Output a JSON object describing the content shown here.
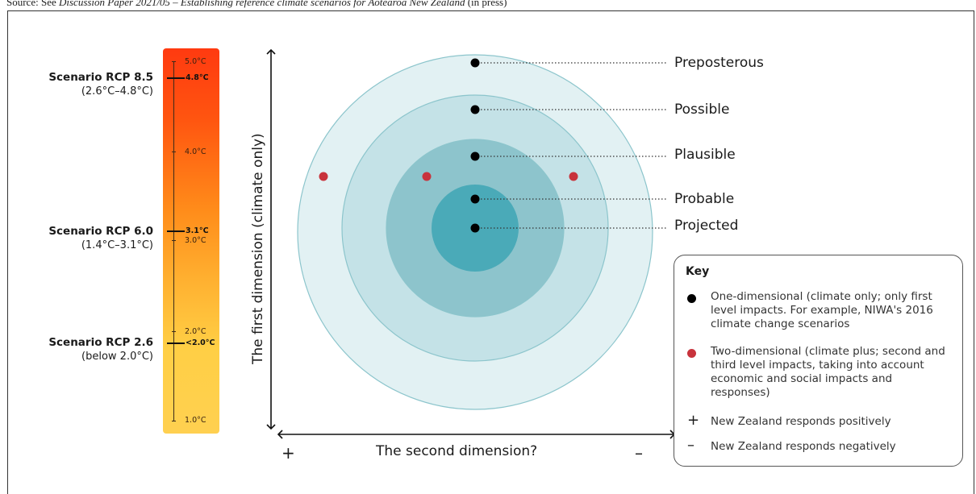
{
  "source": {
    "prefix": "Source: See ",
    "title": "Discussion Paper 2021/05 – Establishing reference climate scenarios for Aotearoa New Zealand",
    "suffix": " (in press)"
  },
  "temperature_bar": {
    "ticks": [
      "5.0°C",
      "4.0°C",
      "3.0°C",
      "2.0°C",
      "1.0°C"
    ],
    "marks": [
      "4.8°C",
      "3.1°C",
      "<2.0°C"
    ]
  },
  "scenarios": [
    {
      "name": "Scenario RCP 8.5",
      "range": "(2.6°C–4.8°C)"
    },
    {
      "name": "Scenario RCP 6.0",
      "range": "(1.4°C–3.1°C)"
    },
    {
      "name": "Scenario RCP 2.6",
      "range": "(below 2.0°C)"
    }
  ],
  "axes": {
    "y_label": "The first dimension (climate only)",
    "x_label": "The second dimension?",
    "x_left_sign": "+",
    "x_right_sign": "–"
  },
  "circles": [
    "Preposterous",
    "Possible",
    "Plausible",
    "Probable",
    "Projected"
  ],
  "colors": {
    "ring1": "#e2f1f3",
    "ring2": "#c4e2e7",
    "ring3": "#8dc4cc",
    "core": "#4aaab8",
    "ring_stroke": "#8cc5cc",
    "red_dot": "#c8333c",
    "black_dot": "#000000"
  },
  "key": {
    "title": "Key",
    "items": [
      {
        "marker": "black-dot",
        "text": "One-dimensional (climate only; only first level impacts. For example, NIWA's 2016 climate change scenarios"
      },
      {
        "marker": "red-dot",
        "text": "Two-dimensional (climate plus; second and third level impacts, taking into account economic and social impacts and responses)"
      },
      {
        "marker": "+",
        "text": "New Zealand responds positively"
      },
      {
        "marker": "–",
        "text": "New Zealand responds negatively"
      }
    ]
  }
}
